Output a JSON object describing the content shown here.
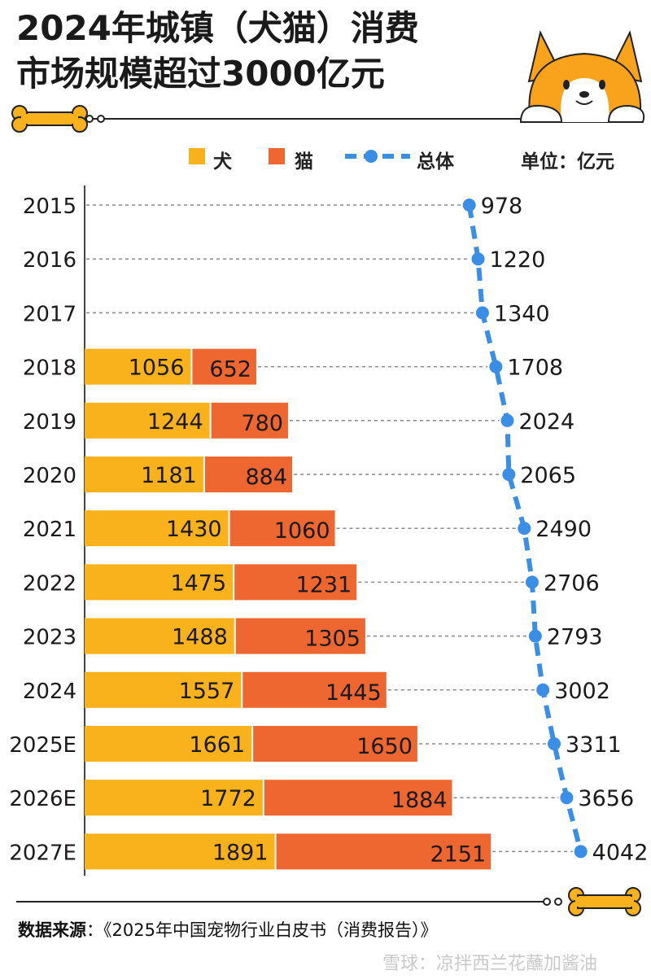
{
  "title_line1": "2024年城镇（犬猫）消费",
  "title_line2": "市场规模超过3000亿元",
  "legend": {
    "dog": "犬",
    "cat": "猫",
    "total": "总体",
    "unit": "单位：亿元"
  },
  "colors": {
    "dog": "#F9B21C",
    "cat": "#EE6731",
    "total": "#3A8EE6",
    "grid": "#888888"
  },
  "chart_data": {
    "type": "bar",
    "orientation": "horizontal",
    "stacked": true,
    "categories": [
      "2015",
      "2016",
      "2017",
      "2018",
      "2019",
      "2020",
      "2021",
      "2022",
      "2023",
      "2024",
      "2025E",
      "2026E",
      "2027E"
    ],
    "series": [
      {
        "name": "犬",
        "type": "bar",
        "values": [
          null,
          null,
          null,
          1056,
          1244,
          1181,
          1430,
          1475,
          1488,
          1557,
          1661,
          1772,
          1891
        ]
      },
      {
        "name": "猫",
        "type": "bar",
        "values": [
          null,
          null,
          null,
          652,
          780,
          884,
          1060,
          1231,
          1305,
          1445,
          1650,
          1884,
          2151
        ]
      },
      {
        "name": "总体",
        "type": "line",
        "values": [
          978,
          1220,
          1340,
          1708,
          2024,
          2065,
          2490,
          2706,
          2793,
          3002,
          3311,
          3656,
          4042
        ]
      }
    ],
    "unit": "亿元"
  },
  "source_label": "数据来源",
  "source_text": "：《2025年中国宠物行业白皮书（消费报告）》",
  "watermark": "雪球：凉拌西兰花蘸加酱油"
}
